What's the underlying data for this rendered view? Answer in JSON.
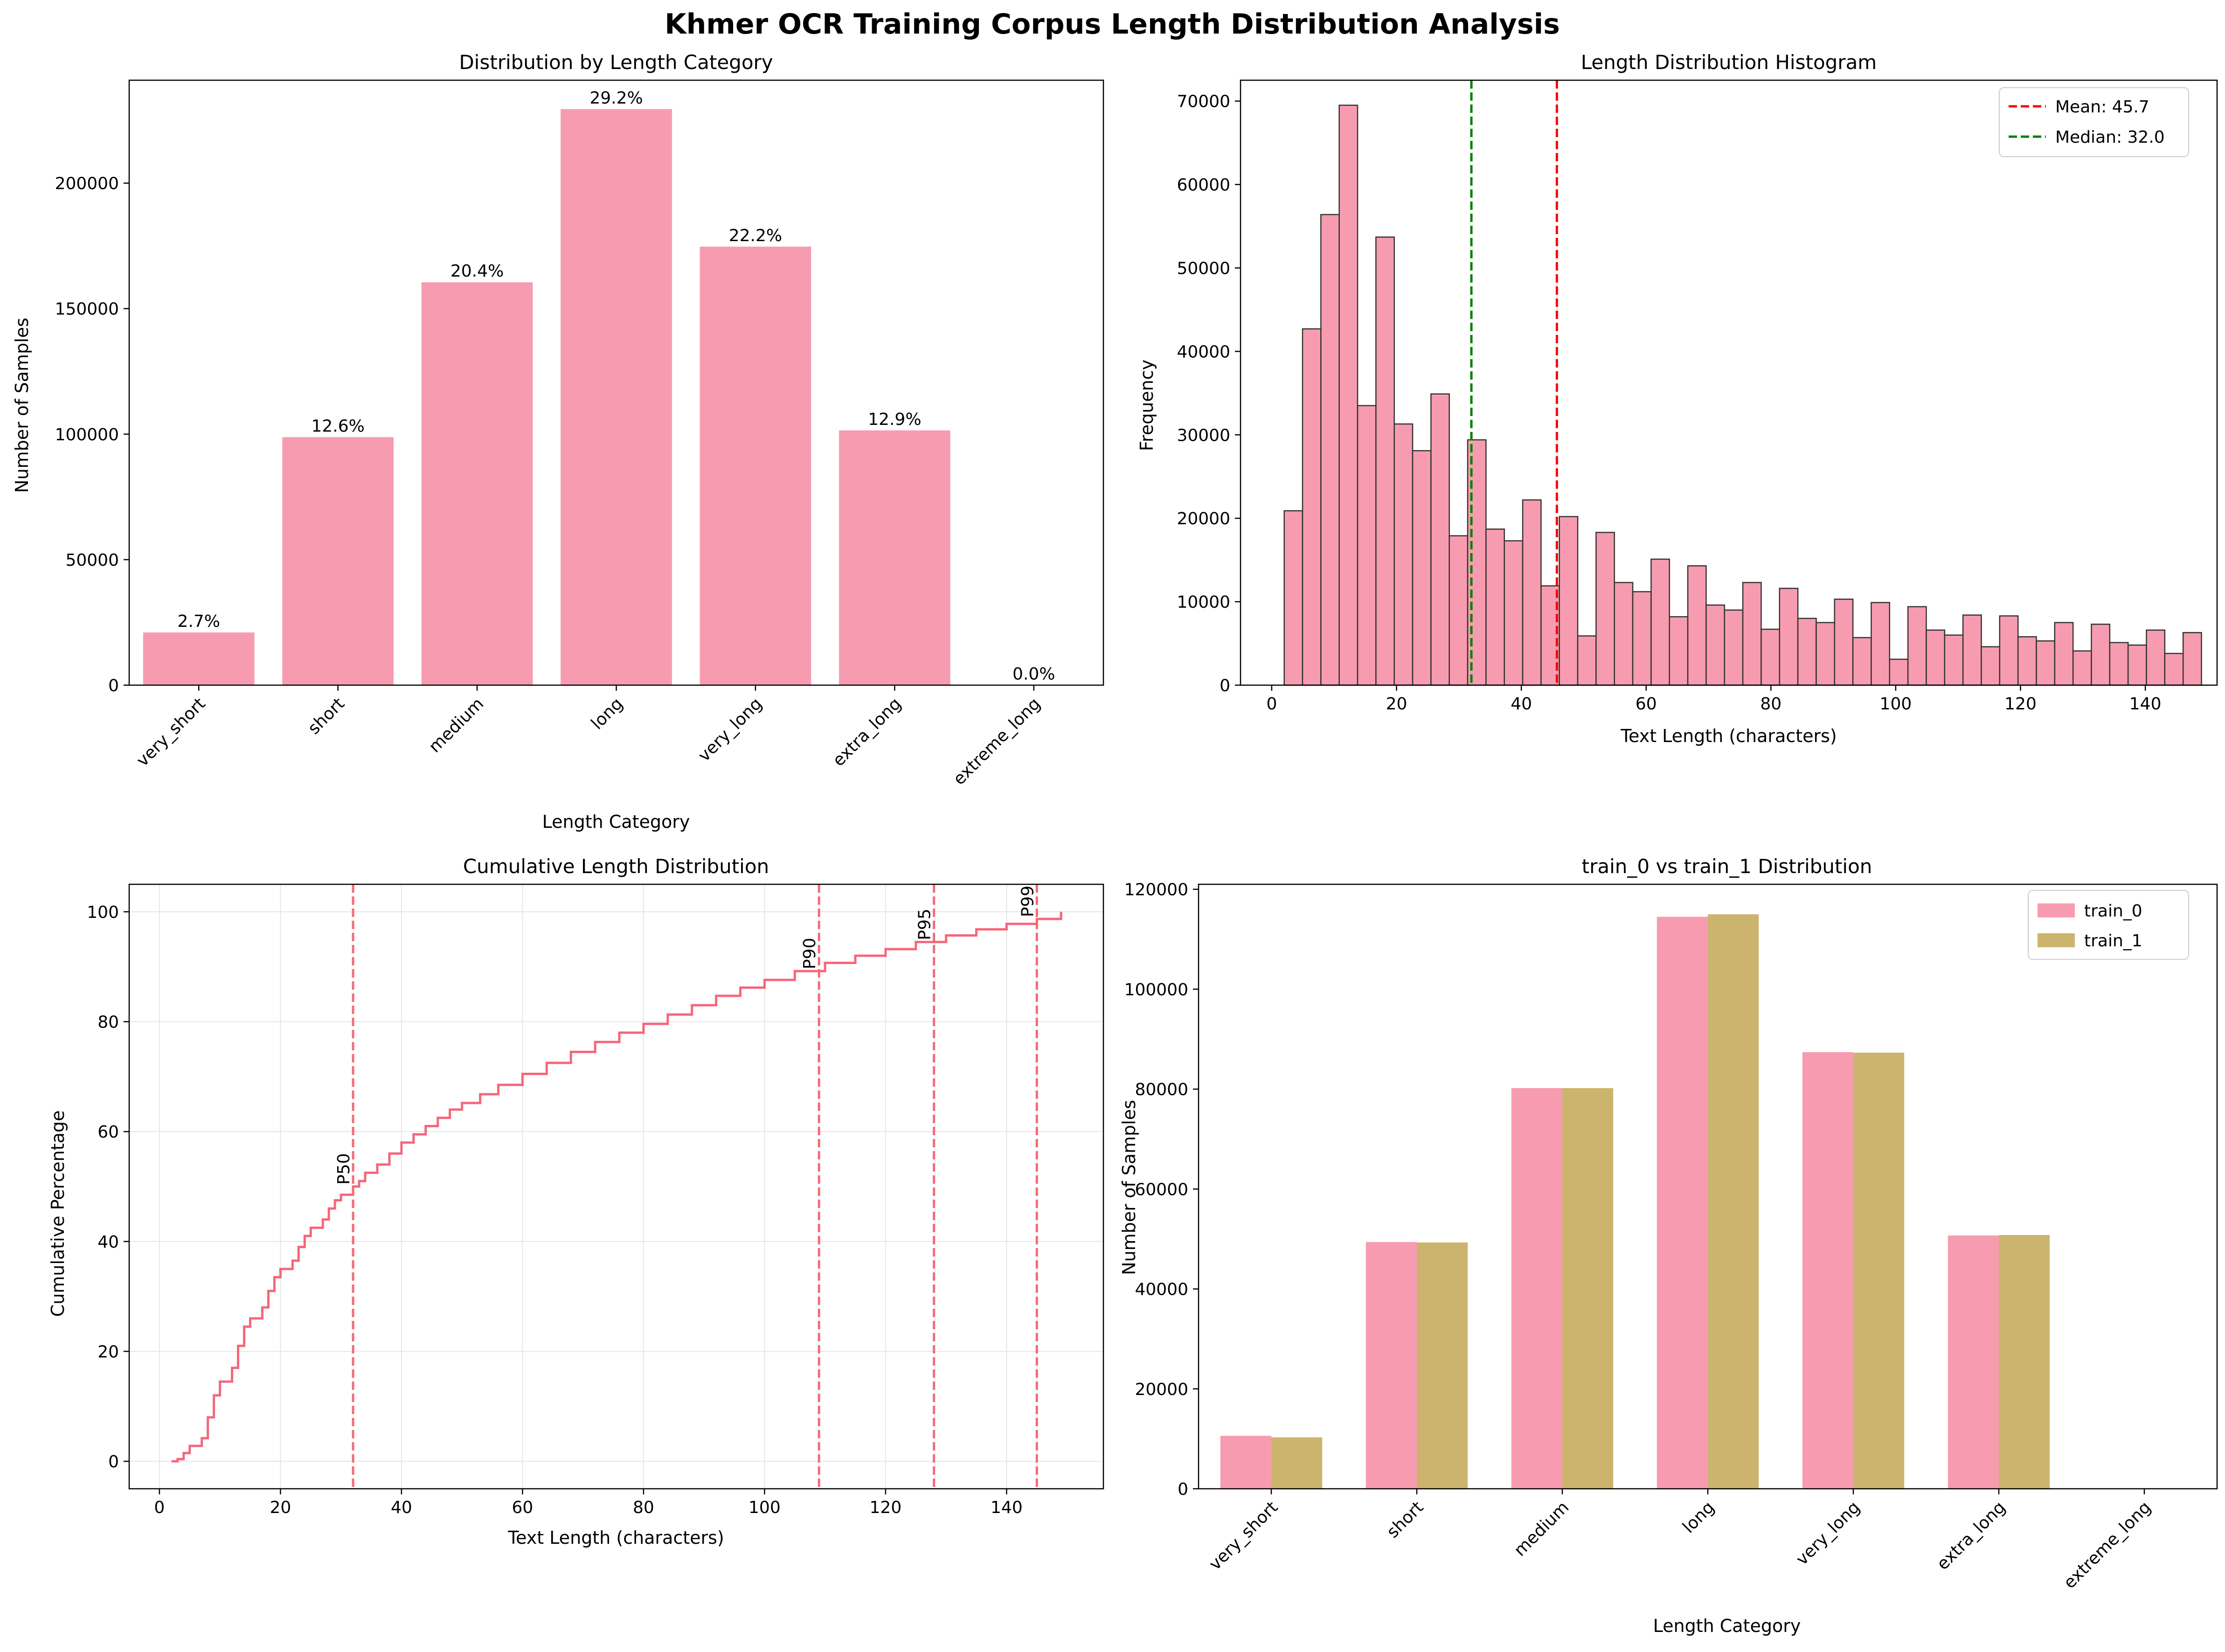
{
  "figure": {
    "title": "Khmer OCR Training Corpus Length Distribution Analysis"
  },
  "colors": {
    "pink": "#f79cb0",
    "gold": "#cdb46e",
    "mean_line": "#ff0000",
    "median_line": "#008000",
    "cdf_line": "#f5667a",
    "pct_line": "#f46b73"
  },
  "chart_data": [
    {
      "type": "bar",
      "title": "Distribution by Length Category",
      "xlabel": "Length Category",
      "ylabel": "Number of Samples",
      "categories": [
        "very_short",
        "short",
        "medium",
        "long",
        "very_long",
        "extra_long",
        "extreme_long"
      ],
      "values": [
        21000,
        98800,
        160500,
        229500,
        174700,
        101500,
        0
      ],
      "bar_labels": [
        "2.7%",
        "12.6%",
        "20.4%",
        "29.2%",
        "22.2%",
        "12.9%",
        "0.0%"
      ],
      "ylim": [
        0,
        241000
      ],
      "yticks": [
        0,
        50000,
        100000,
        150000,
        200000
      ],
      "ytick_labels": [
        "0",
        "50000",
        "100000",
        "150000",
        "200000"
      ],
      "grid": false
    },
    {
      "type": "bar",
      "subtype": "histogram",
      "title": "Length Distribution Histogram",
      "xlabel": "Text Length (characters)",
      "ylabel": "Frequency",
      "bin_start": 2,
      "bin_width": 2.94,
      "values": [
        20900,
        42700,
        56400,
        69500,
        33500,
        53700,
        31300,
        28100,
        34900,
        17900,
        29400,
        18700,
        17300,
        22200,
        11900,
        20200,
        5900,
        18300,
        12300,
        11200,
        15100,
        8200,
        14300,
        9600,
        9000,
        12300,
        6700,
        11600,
        8000,
        7500,
        10300,
        5700,
        9900,
        3100,
        9400,
        6600,
        6000,
        8400,
        4600,
        8300,
        5800,
        5300,
        7500,
        4100,
        7300,
        5100,
        4800,
        6600,
        3800,
        6300
      ],
      "xlim": [
        -5,
        151.5
      ],
      "ylim": [
        0,
        72500
      ],
      "xticks": [
        0,
        20,
        40,
        60,
        80,
        100,
        120,
        140
      ],
      "xtick_labels": [
        "0",
        "20",
        "40",
        "60",
        "80",
        "100",
        "120",
        "140"
      ],
      "yticks": [
        0,
        10000,
        20000,
        30000,
        40000,
        50000,
        60000,
        70000
      ],
      "ytick_labels": [
        "0",
        "10000",
        "20000",
        "30000",
        "40000",
        "50000",
        "60000",
        "70000"
      ],
      "mean": 45.7,
      "median": 32.0,
      "legend": [
        "Mean: 45.7",
        "Median: 32.0"
      ],
      "legend_position": "top-right",
      "grid": false
    },
    {
      "type": "line",
      "subtype": "step",
      "title": "Cumulative Length Distribution",
      "xlabel": "Text Length (characters)",
      "ylabel": "Cumulative Percentage",
      "points": [
        [
          2,
          0
        ],
        [
          3,
          0.4
        ],
        [
          4,
          1.5
        ],
        [
          5,
          2.8
        ],
        [
          7,
          4.2
        ],
        [
          8,
          8
        ],
        [
          9,
          12
        ],
        [
          10,
          14.5
        ],
        [
          12,
          17
        ],
        [
          13,
          21
        ],
        [
          14,
          24.5
        ],
        [
          15,
          26
        ],
        [
          17,
          28
        ],
        [
          18,
          31
        ],
        [
          19,
          33.5
        ],
        [
          20,
          35
        ],
        [
          22,
          36.5
        ],
        [
          23,
          39
        ],
        [
          24,
          41
        ],
        [
          25,
          42.5
        ],
        [
          27,
          44
        ],
        [
          28,
          46
        ],
        [
          29,
          47.5
        ],
        [
          30,
          48.5
        ],
        [
          32,
          50
        ],
        [
          33,
          51
        ],
        [
          34,
          52.5
        ],
        [
          36,
          54
        ],
        [
          38,
          56
        ],
        [
          40,
          58
        ],
        [
          42,
          59.5
        ],
        [
          44,
          61
        ],
        [
          46,
          62.5
        ],
        [
          48,
          64
        ],
        [
          50,
          65.2
        ],
        [
          53,
          66.8
        ],
        [
          56,
          68.5
        ],
        [
          60,
          70.5
        ],
        [
          64,
          72.5
        ],
        [
          68,
          74.5
        ],
        [
          72,
          76.3
        ],
        [
          76,
          78
        ],
        [
          80,
          79.6
        ],
        [
          84,
          81.3
        ],
        [
          88,
          83
        ],
        [
          92,
          84.7
        ],
        [
          96,
          86.2
        ],
        [
          100,
          87.6
        ],
        [
          105,
          89.2
        ],
        [
          110,
          90.7
        ],
        [
          115,
          92
        ],
        [
          120,
          93.2
        ],
        [
          125,
          94.5
        ],
        [
          130,
          95.7
        ],
        [
          135,
          96.8
        ],
        [
          140,
          97.8
        ],
        [
          145,
          98.7
        ],
        [
          149,
          100
        ]
      ],
      "percentiles": [
        {
          "label": "P50",
          "x": 32
        },
        {
          "label": "P90",
          "x": 109
        },
        {
          "label": "P95",
          "x": 128
        },
        {
          "label": "P99",
          "x": 145
        }
      ],
      "xlim": [
        -5,
        156
      ],
      "ylim": [
        -5,
        105
      ],
      "xticks": [
        0,
        20,
        40,
        60,
        80,
        100,
        120,
        140
      ],
      "xtick_labels": [
        "0",
        "20",
        "40",
        "60",
        "80",
        "100",
        "120",
        "140"
      ],
      "yticks": [
        0,
        20,
        40,
        60,
        80,
        100
      ],
      "ytick_labels": [
        "0",
        "20",
        "40",
        "60",
        "80",
        "100"
      ],
      "grid": true
    },
    {
      "type": "bar",
      "subtype": "grouped",
      "title": "train_0 vs train_1 Distribution",
      "xlabel": "Length Category",
      "ylabel": "Number of Samples",
      "categories": [
        "very_short",
        "short",
        "medium",
        "long",
        "very_long",
        "extra_long",
        "extreme_long"
      ],
      "series": [
        {
          "name": "train_0",
          "values": [
            10600,
            49400,
            80200,
            114500,
            87400,
            50700,
            0
          ]
        },
        {
          "name": "train_1",
          "values": [
            10300,
            49300,
            80200,
            115000,
            87300,
            50800,
            0
          ]
        }
      ],
      "ylim": [
        0,
        121000
      ],
      "yticks": [
        0,
        20000,
        40000,
        60000,
        80000,
        100000,
        120000
      ],
      "ytick_labels": [
        "0",
        "20000",
        "40000",
        "60000",
        "80000",
        "100000",
        "120000"
      ],
      "legend_position": "top-right",
      "grid": false
    }
  ]
}
